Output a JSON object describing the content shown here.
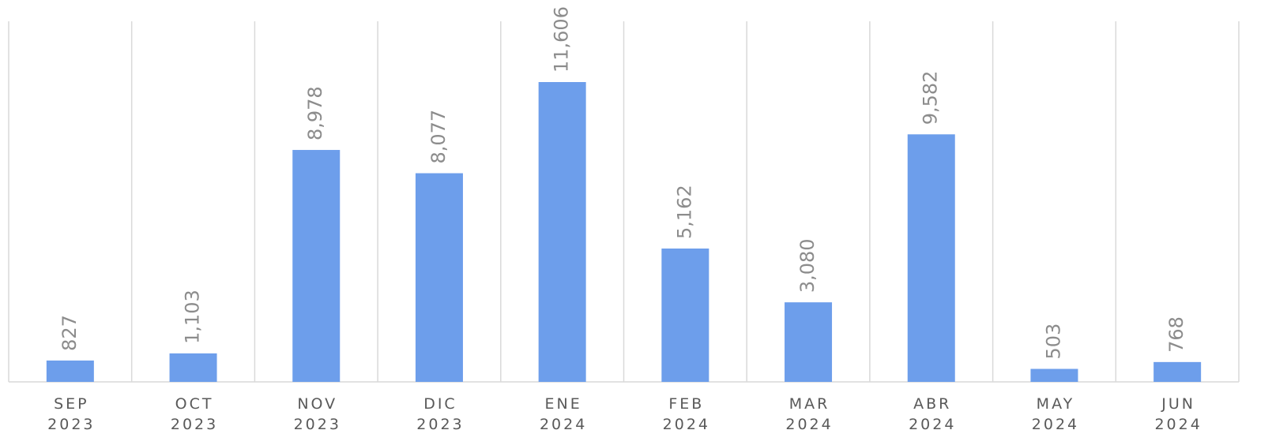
{
  "chart_data": {
    "type": "bar",
    "categories": [
      [
        "SEP",
        "2023"
      ],
      [
        "OCT",
        "2023"
      ],
      [
        "NOV",
        "2023"
      ],
      [
        "DIC",
        "2023"
      ],
      [
        "ENE",
        "2024"
      ],
      [
        "FEB",
        "2024"
      ],
      [
        "MAR",
        "2024"
      ],
      [
        "ABR",
        "2024"
      ],
      [
        "MAY",
        "2024"
      ],
      [
        "JUN",
        "2024"
      ]
    ],
    "values": [
      827,
      1103,
      8978,
      8077,
      11606,
      5162,
      3080,
      9582,
      503,
      768
    ],
    "value_labels": [
      "827",
      "1,103",
      "8,978",
      "8,077",
      "11,606",
      "5,162",
      "3,080",
      "9,582",
      "503",
      "768"
    ],
    "color": "#6d9eeb"
  }
}
